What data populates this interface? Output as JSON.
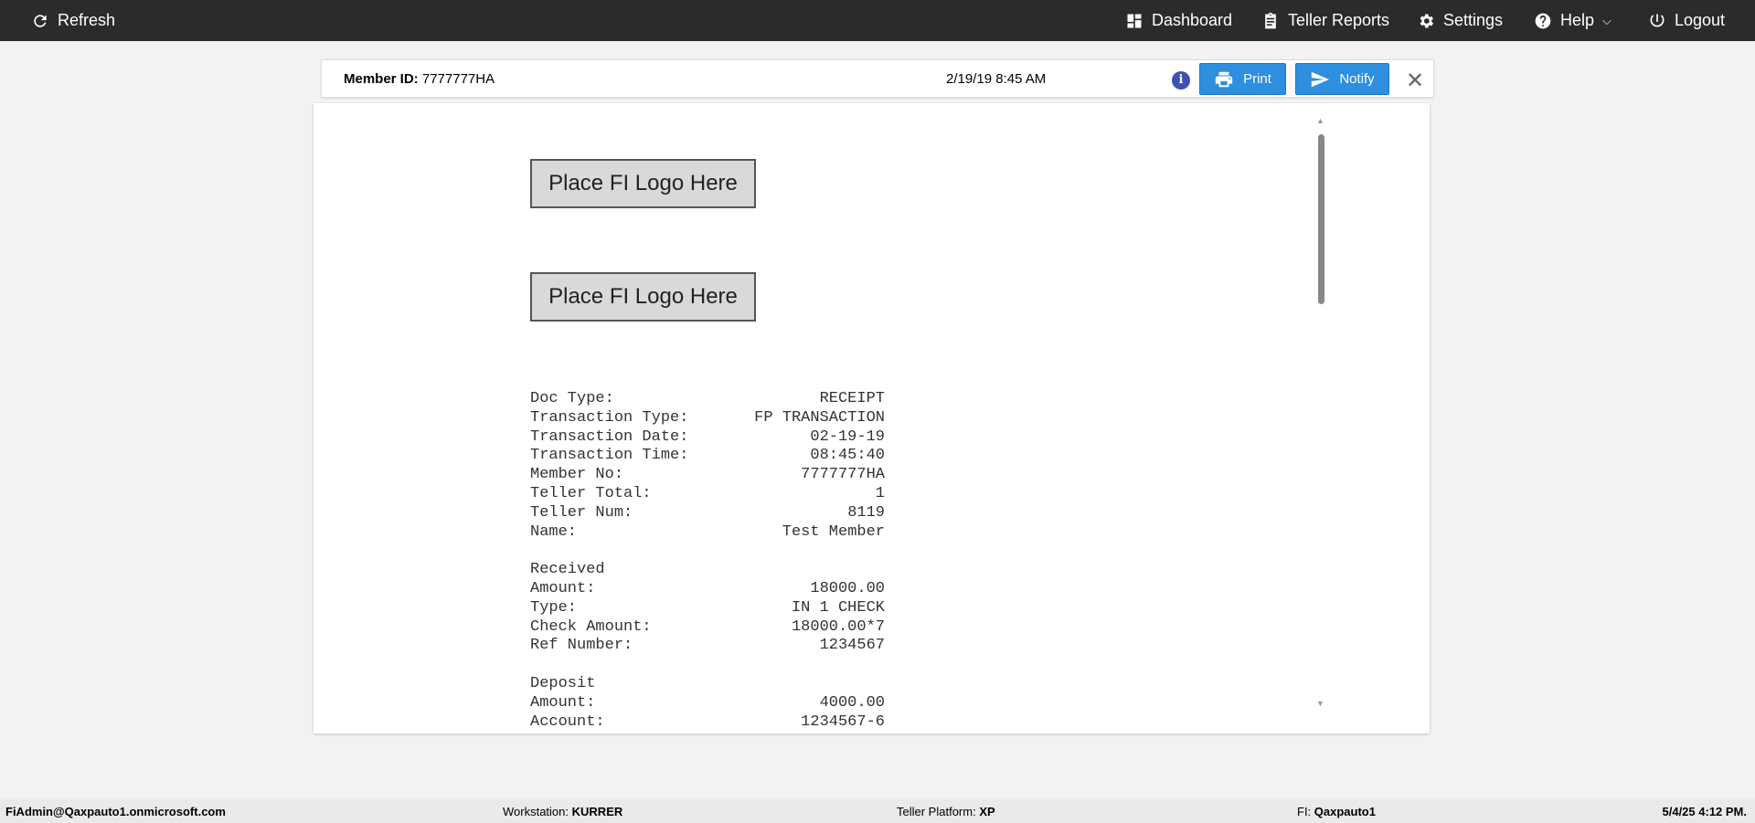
{
  "topbar": {
    "refresh": "Refresh",
    "dashboard": "Dashboard",
    "teller_reports": "Teller Reports",
    "settings": "Settings",
    "help": "Help",
    "logout": "Logout"
  },
  "member_bar": {
    "member_id_label": "Member ID:",
    "member_id": "7777777HA",
    "datetime": "2/19/19 8:45 AM",
    "info": "i",
    "print": "Print",
    "notify": "Notify",
    "close": "✕"
  },
  "document": {
    "logos": [
      "Place FI Logo Here",
      "Place FI Logo Here"
    ],
    "rows": [
      {
        "label": "Doc Type:",
        "value": "RECEIPT"
      },
      {
        "label": "Transaction Type:",
        "value": "FP TRANSACTION"
      },
      {
        "label": "Transaction Date:",
        "value": "02-19-19"
      },
      {
        "label": "Transaction Time:",
        "value": "08:45:40"
      },
      {
        "label": "Member No:",
        "value": "7777777HA"
      },
      {
        "label": "Teller Total:",
        "value": "1"
      },
      {
        "label": "Teller Num:",
        "value": "8119"
      },
      {
        "label": "Name:",
        "value": "Test Member"
      },
      {
        "label": "",
        "value": ""
      },
      {
        "label": "Received",
        "value": ""
      },
      {
        "label": "Amount:",
        "value": "18000.00"
      },
      {
        "label": "Type:",
        "value": "IN 1 CHECK"
      },
      {
        "label": "Check Amount:",
        "value": "18000.00*7"
      },
      {
        "label": "Ref Number:",
        "value": "1234567"
      },
      {
        "label": "",
        "value": ""
      },
      {
        "label": "Deposit",
        "value": ""
      },
      {
        "label": "Amount:",
        "value": "4000.00"
      },
      {
        "label": "Account:",
        "value": "1234567-6"
      }
    ]
  },
  "footer": {
    "user": "FiAdmin@Qaxpauto1.onmicrosoft.com",
    "workstation_label": "Workstation:",
    "workstation": "KURRER",
    "platform_label": "Teller Platform:",
    "platform": "XP",
    "fi_label": "FI:",
    "fi": "Qaxpauto1",
    "datetime": "5/4/25 4:12 PM."
  }
}
